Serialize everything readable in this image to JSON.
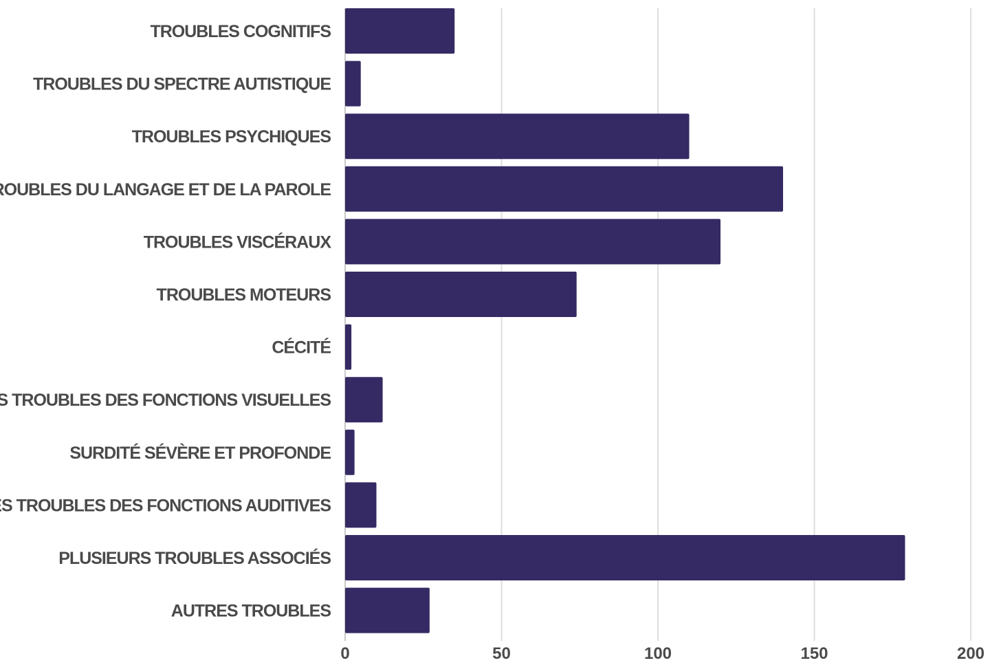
{
  "chart_data": {
    "type": "bar",
    "orientation": "horizontal",
    "categories": [
      "TROUBLES COGNITIFS",
      "TROUBLES DU SPECTRE AUTISTIQUE",
      "TROUBLES PSYCHIQUES",
      "TROUBLES DU LANGAGE ET DE LA PAROLE",
      "TROUBLES VISCÉRAUX",
      "TROUBLES MOTEURS",
      "CÉCITÉ",
      "AUTRES TROUBLES DES FONCTIONS VISUELLES",
      "SURDITÉ SÉVÈRE ET PROFONDE",
      "AUTRES TROUBLES DES FONCTIONS AUDITIVES",
      "PLUSIEURS TROUBLES ASSOCIÉS",
      "AUTRES TROUBLES"
    ],
    "values": [
      35,
      5,
      110,
      140,
      120,
      74,
      2,
      12,
      3,
      10,
      179,
      27
    ],
    "xlim": [
      0,
      200
    ],
    "xticks": [
      "0",
      "50",
      "100",
      "150",
      "200"
    ],
    "title": "",
    "xlabel": "",
    "ylabel": "",
    "grid": "vertical",
    "legend": "none",
    "bar_color": "#352a63",
    "label_color": "#4a4a4a",
    "grid_color": "#dedede"
  }
}
